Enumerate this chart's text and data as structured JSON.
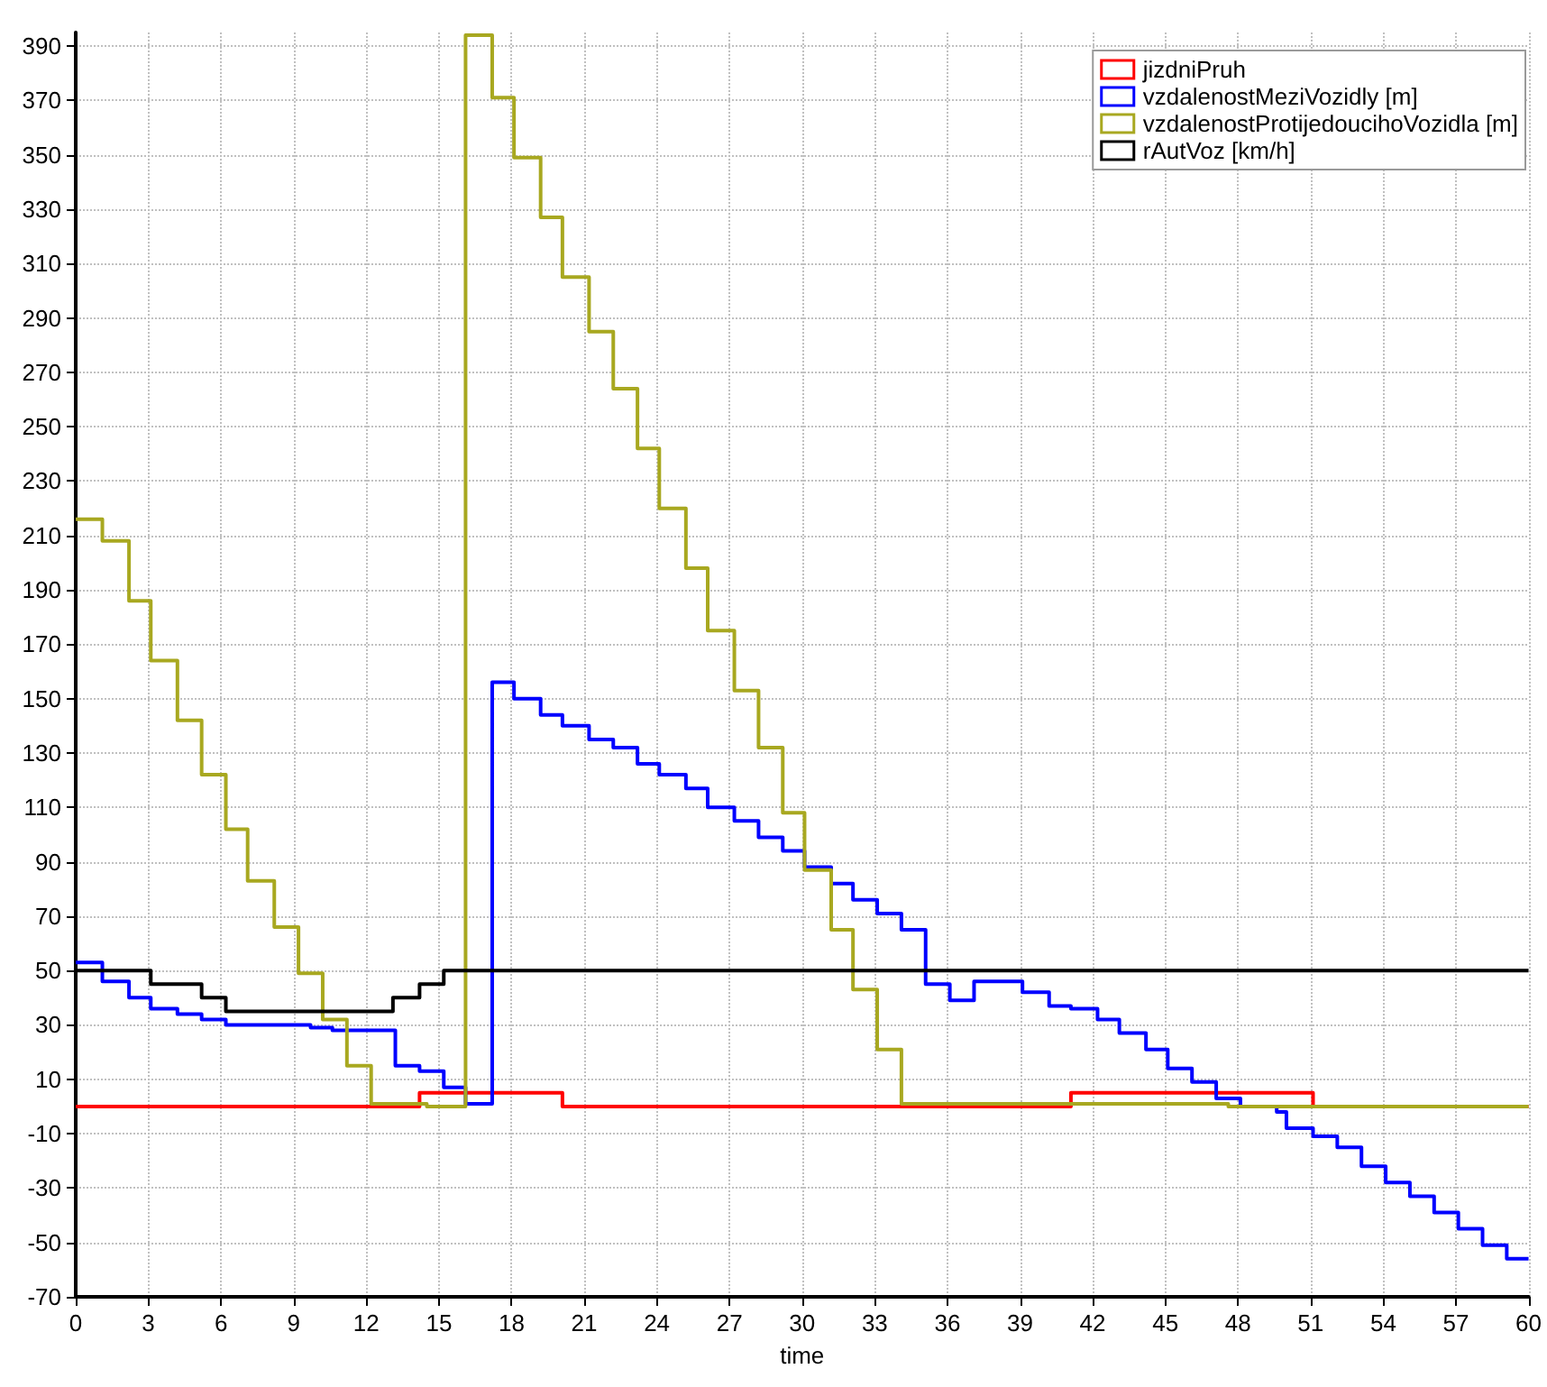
{
  "chart_data": {
    "type": "step",
    "xlabel": "time",
    "xlim": [
      0,
      60
    ],
    "xticks": [
      0,
      3,
      6,
      9,
      12,
      15,
      18,
      21,
      24,
      27,
      30,
      33,
      36,
      39,
      42,
      45,
      48,
      51,
      54,
      57,
      60
    ],
    "ylim": [
      -70,
      395
    ],
    "yticks": [
      -70,
      -50,
      -30,
      -10,
      10,
      30,
      50,
      70,
      90,
      110,
      130,
      150,
      170,
      190,
      210,
      230,
      250,
      270,
      290,
      310,
      330,
      350,
      370,
      390
    ],
    "grid": true,
    "legend": "top right",
    "marker": "none",
    "line_style": "solid",
    "series": [
      {
        "name": "jizdniPruh",
        "color": "#ff0000",
        "x": [
          0,
          14.2,
          20.1,
          41.1,
          51.1,
          60
        ],
        "values": [
          0,
          5,
          0,
          5,
          0,
          0
        ]
      },
      {
        "name": "vzdalenostMeziVozidly [m]",
        "color": "#0000ff",
        "x": [
          0,
          1.1,
          2.2,
          3.1,
          4.2,
          5.2,
          6.2,
          9.7,
          10.6,
          13.2,
          14.2,
          15.2,
          16.1,
          17.2,
          18.1,
          19.2,
          20.1,
          21.2,
          22.2,
          23.2,
          24.1,
          25.2,
          26.1,
          27.2,
          28.2,
          29.2,
          30.1,
          31.2,
          32.1,
          33.1,
          34.1,
          35.1,
          36.1,
          37.1,
          39.1,
          40.2,
          41.1,
          42.2,
          43.1,
          44.2,
          45.1,
          46.1,
          47.1,
          48.1,
          49.6,
          50,
          51.1,
          52.1,
          53.1,
          54.1,
          55.1,
          56.1,
          57.1,
          58.1,
          59.1,
          60
        ],
        "values": [
          53,
          46,
          40,
          36,
          34,
          32,
          30,
          29,
          28,
          15,
          13,
          7,
          1,
          156,
          150,
          144,
          140,
          135,
          132,
          126,
          122,
          117,
          110,
          105,
          99,
          94,
          88,
          82,
          76,
          71,
          65,
          45,
          39,
          46,
          42,
          37,
          36,
          32,
          27,
          21,
          14,
          9,
          3,
          0,
          -2,
          -8,
          -11,
          -15,
          -22,
          -28,
          -33,
          -39,
          -45,
          -51,
          -56,
          -56
        ]
      },
      {
        "name": "vzdalenostProtijedoucihoVozidla [m]",
        "color": "#a8a820",
        "x": [
          0,
          1.1,
          2.2,
          3.1,
          4.2,
          5.2,
          6.2,
          7.1,
          8.2,
          9.2,
          10.2,
          11.2,
          12.2,
          14.5,
          16.1,
          17.2,
          18.1,
          19.2,
          20.1,
          21.2,
          22.2,
          23.2,
          24.1,
          25.2,
          26.1,
          27.2,
          28.2,
          29.2,
          30.1,
          31.2,
          32.1,
          33.1,
          34.1,
          47.6,
          60
        ],
        "values": [
          216,
          208,
          186,
          164,
          142,
          122,
          102,
          83,
          66,
          49,
          32,
          15,
          1,
          0,
          394,
          371,
          349,
          327,
          305,
          285,
          264,
          242,
          220,
          198,
          175,
          153,
          132,
          108,
          87,
          65,
          43,
          21,
          1,
          0,
          0
        ]
      },
      {
        "name": "rAutVoz [km/h]",
        "color": "#000000",
        "x": [
          0,
          3.1,
          5.2,
          6.2,
          13.1,
          14.2,
          15.2,
          60
        ],
        "values": [
          50,
          45,
          40,
          35,
          40,
          45,
          50,
          50
        ]
      }
    ]
  }
}
